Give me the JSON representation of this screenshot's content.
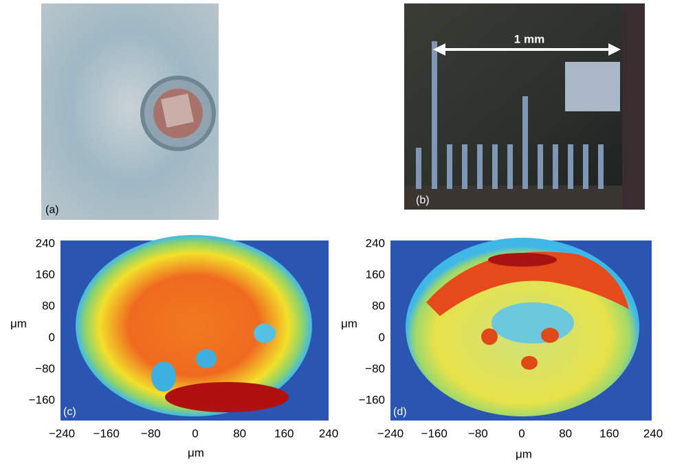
{
  "panels": [
    {
      "label": "(a)"
    },
    {
      "label": "(b)",
      "annotation": "1 mm"
    },
    {
      "label": "(c)",
      "xlabel": "μm",
      "ylabel": "μm",
      "xticks": [
        "−240",
        "−160",
        "−80",
        "0",
        "80",
        "160",
        "240"
      ],
      "yticks": [
        "240",
        "160",
        "80",
        "0",
        "−80",
        "−160"
      ]
    },
    {
      "label": "(d)",
      "xlabel": "μm",
      "ylabel": "μm",
      "xticks": [
        "−240",
        "−160",
        "−80",
        "0",
        "80",
        "160",
        "240"
      ],
      "yticks": [
        "240",
        "160",
        "80",
        "0",
        "−80",
        "−160"
      ]
    }
  ]
}
